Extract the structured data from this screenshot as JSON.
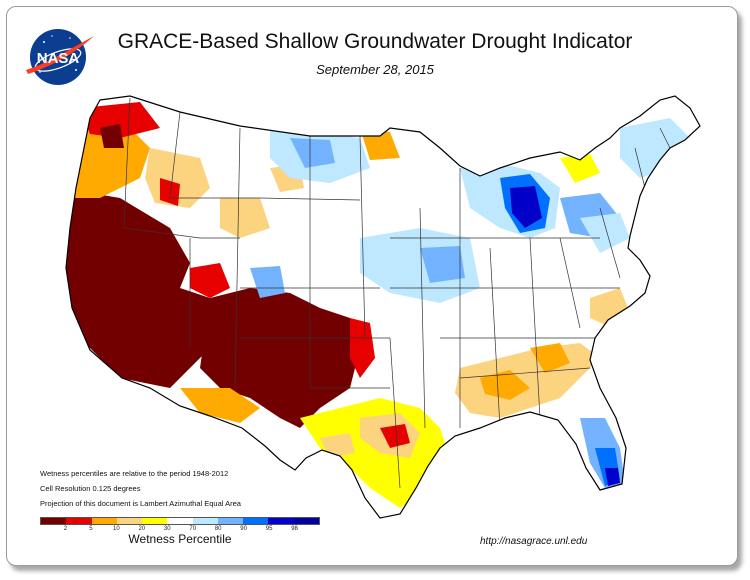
{
  "header": {
    "title": "GRACE-Based Shallow Groundwater Drought Indicator",
    "date": "September 28, 2015"
  },
  "logo": {
    "text": "NASA",
    "colors": {
      "disc": "#0b3d91",
      "swoosh": "#fc3d21",
      "stars": "#ffffff"
    }
  },
  "notes": [
    "Wetness percentiles are relative to the period 1948-2012",
    "Cell Resolution 0.125 degrees",
    "Projection of this document is Lambert Azimuthal Equal Area"
  ],
  "legend": {
    "label": "Wetness Percentile",
    "ticks": [
      "2",
      "5",
      "10",
      "20",
      "30",
      "70",
      "80",
      "90",
      "95",
      "98"
    ],
    "colors": [
      "#730000",
      "#e60000",
      "#ffaa00",
      "#fcd37f",
      "#ffff00",
      "#ffffff",
      "#bee8ff",
      "#73b2ff",
      "#0070ff",
      "#0000c8",
      "#00009a"
    ]
  },
  "source_url": "http://nasagrace.unl.edu",
  "map_colors": {
    "extreme_dry": "#730000",
    "severe_dry": "#e60000",
    "moderate_dry": "#ffaa00",
    "mild_dry": "#fcd37f",
    "abnormal_dry": "#ffff00",
    "normal": "#ffffff",
    "wet1": "#bee8ff",
    "wet2": "#73b2ff",
    "wet3": "#0070ff",
    "wet4": "#0000c8",
    "outline": "#000000",
    "state_border": "#333333"
  }
}
